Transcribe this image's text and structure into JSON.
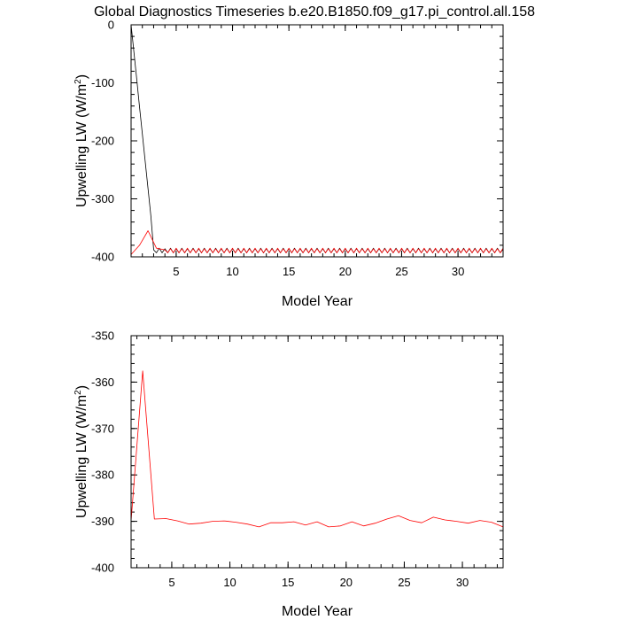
{
  "figure": {
    "title": "Global Diagnostics Timeseries b.e20.B1850.f09_g17.pi_control.all.158"
  },
  "chart_data": [
    {
      "type": "line",
      "xlabel": "Model Year",
      "ylabel": "Upwelling LW (W/m",
      "ylabel_sup": "2",
      "ylabel_end": ")",
      "xlim": [
        1,
        34
      ],
      "ylim": [
        -400,
        0
      ],
      "xticks": [
        5,
        10,
        15,
        20,
        25,
        30
      ],
      "yticks": [
        -400,
        -300,
        -200,
        -100,
        0
      ],
      "xminor_step": 1,
      "yminor_step": 20,
      "series": [
        {
          "color": "#000000",
          "x": [
            1.0,
            1.25,
            1.5,
            1.75,
            2.0,
            2.25,
            2.5,
            2.75,
            3.0,
            3.25,
            3.5,
            3.75,
            4.0,
            4.25,
            4.5,
            4.75,
            5.0,
            5.25,
            5.5,
            5.75,
            6.0,
            6.25,
            6.5,
            6.75,
            7.0,
            7.25,
            7.5,
            7.75,
            8.0,
            8.25,
            8.5,
            8.75,
            9.0,
            9.25,
            9.5,
            9.75,
            10.0,
            10.25,
            10.5,
            10.75,
            11.0,
            11.25,
            11.5,
            11.75,
            12.0,
            12.25,
            12.5,
            12.75,
            13.0,
            13.25,
            13.5,
            13.75,
            14.0,
            14.25,
            14.5,
            14.75,
            15.0,
            15.25,
            15.5,
            15.75,
            16.0,
            16.25,
            16.5,
            16.75,
            17.0,
            17.25,
            17.5,
            17.75,
            18.0,
            18.25,
            18.5,
            18.75,
            19.0,
            19.25,
            19.5,
            19.75,
            20.0,
            20.25,
            20.5,
            20.75,
            21.0,
            21.25,
            21.5,
            21.75,
            22.0,
            22.25,
            22.5,
            22.75,
            23.0,
            23.25,
            23.5,
            23.75,
            24.0,
            24.25,
            24.5,
            24.75,
            25.0,
            25.25,
            25.5,
            25.75,
            26.0,
            26.25,
            26.5,
            26.75,
            27.0,
            27.25,
            27.5,
            27.75,
            28.0,
            28.25,
            28.5,
            28.75,
            29.0,
            29.25,
            29.5,
            29.75,
            30.0,
            30.25,
            30.5,
            30.75,
            31.0,
            31.25,
            31.5,
            31.75,
            32.0,
            32.25,
            32.5,
            32.75,
            33.0,
            33.25,
            33.5,
            33.75,
            34.0
          ],
          "y": [
            0,
            -47,
            -94,
            -141,
            -188,
            -235,
            -282,
            -329,
            -388,
            -393,
            -385,
            -393,
            -386,
            -393,
            -385,
            -393,
            -386,
            -393,
            -385,
            -393,
            -386,
            -393,
            -385,
            -393,
            -386,
            -393,
            -385,
            -393,
            -386,
            -393,
            -385,
            -393,
            -386,
            -393,
            -385,
            -393,
            -386,
            -393,
            -385,
            -393,
            -386,
            -393,
            -385,
            -393,
            -386,
            -393,
            -385,
            -393,
            -386,
            -393,
            -385,
            -393,
            -386,
            -393,
            -385,
            -393,
            -386,
            -393,
            -385,
            -393,
            -386,
            -393,
            -385,
            -393,
            -386,
            -393,
            -385,
            -393,
            -386,
            -393,
            -385,
            -393,
            -386,
            -393,
            -385,
            -393,
            -386,
            -393,
            -385,
            -393,
            -386,
            -393,
            -385,
            -393,
            -386,
            -393,
            -385,
            -393,
            -386,
            -393,
            -385,
            -393,
            -386,
            -393,
            -385,
            -393,
            -386,
            -393,
            -385,
            -393,
            -386,
            -393,
            -385,
            -393,
            -386,
            -393,
            -385,
            -393,
            -386,
            -393,
            -385,
            -393,
            -386,
            -393,
            -385,
            -393,
            -386,
            -393,
            -385,
            -393,
            -386,
            -393,
            -385,
            -393,
            -386,
            -393,
            -385,
            -393,
            -386,
            -393,
            -385,
            -393,
            -387
          ]
        },
        {
          "color": "#ff0000",
          "x": [
            1.0,
            1.75,
            2.5,
            3.25,
            4.0,
            4.25,
            4.5,
            4.75,
            5.0,
            5.25,
            5.5,
            5.75,
            6.0,
            6.25,
            6.5,
            6.75,
            7.0,
            7.25,
            7.5,
            7.75,
            8.0,
            8.25,
            8.5,
            8.75,
            9.0,
            9.25,
            9.5,
            9.75,
            10.0,
            10.25,
            10.5,
            10.75,
            11.0,
            11.25,
            11.5,
            11.75,
            12.0,
            12.25,
            12.5,
            12.75,
            13.0,
            13.25,
            13.5,
            13.75,
            14.0,
            14.25,
            14.5,
            14.75,
            15.0,
            15.25,
            15.5,
            15.75,
            16.0,
            16.25,
            16.5,
            16.75,
            17.0,
            17.25,
            17.5,
            17.75,
            18.0,
            18.25,
            18.5,
            18.75,
            19.0,
            19.25,
            19.5,
            19.75,
            20.0,
            20.25,
            20.5,
            20.75,
            21.0,
            21.25,
            21.5,
            21.75,
            22.0,
            22.25,
            22.5,
            22.75,
            23.0,
            23.25,
            23.5,
            23.75,
            24.0,
            24.25,
            24.5,
            24.75,
            25.0,
            25.25,
            25.5,
            25.75,
            26.0,
            26.25,
            26.5,
            26.75,
            27.0,
            27.25,
            27.5,
            27.75,
            28.0,
            28.25,
            28.5,
            28.75,
            29.0,
            29.25,
            29.5,
            29.75,
            30.0,
            30.25,
            30.5,
            30.75,
            31.0,
            31.25,
            31.5,
            31.75,
            32.0,
            32.25,
            32.5,
            32.75,
            33.0,
            33.25,
            33.5,
            33.75,
            34.0
          ],
          "y": [
            -396,
            -380,
            -355,
            -385,
            -388,
            -393,
            -386,
            -393,
            -385,
            -393,
            -386,
            -393,
            -385,
            -393,
            -386,
            -393,
            -385,
            -393,
            -386,
            -393,
            -385,
            -393,
            -386,
            -393,
            -385,
            -393,
            -386,
            -393,
            -385,
            -393,
            -386,
            -393,
            -385,
            -393,
            -386,
            -393,
            -385,
            -393,
            -386,
            -393,
            -385,
            -393,
            -386,
            -393,
            -385,
            -393,
            -386,
            -393,
            -385,
            -393,
            -386,
            -393,
            -385,
            -393,
            -386,
            -393,
            -385,
            -393,
            -386,
            -393,
            -385,
            -393,
            -386,
            -393,
            -385,
            -393,
            -386,
            -393,
            -385,
            -393,
            -386,
            -393,
            -385,
            -393,
            -386,
            -393,
            -385,
            -393,
            -386,
            -393,
            -385,
            -393,
            -386,
            -393,
            -385,
            -393,
            -386,
            -393,
            -385,
            -393,
            -386,
            -393,
            -385,
            -393,
            -386,
            -393,
            -385,
            -393,
            -386,
            -393,
            -385,
            -393,
            -386,
            -393,
            -385,
            -393,
            -386,
            -393,
            -385,
            -393,
            -386,
            -393,
            -385,
            -393,
            -386,
            -393,
            -385,
            -393,
            -386,
            -393,
            -385,
            -393,
            -386,
            -393,
            -385
          ]
        }
      ]
    },
    {
      "type": "line",
      "xlabel": "Model Year",
      "ylabel": "Upwelling LW (W/m",
      "ylabel_sup": "2",
      "ylabel_end": ")",
      "xlim": [
        1.5,
        33.5
      ],
      "ylim": [
        -400,
        -350
      ],
      "xticks": [
        5,
        10,
        15,
        20,
        25,
        30
      ],
      "yticks": [
        -400,
        -390,
        -380,
        -370,
        -360,
        -350
      ],
      "xminor_step": 1,
      "yminor_step": 2,
      "series": [
        {
          "color": "#ff0000",
          "x": [
            1.5,
            2.5,
            3.5,
            4.5,
            5.5,
            6.5,
            7.5,
            8.5,
            9.5,
            10.5,
            11.5,
            12.5,
            13.5,
            14.5,
            15.5,
            16.5,
            17.5,
            18.5,
            19.5,
            20.5,
            21.5,
            22.5,
            23.5,
            24.5,
            25.5,
            26.5,
            27.5,
            28.5,
            29.5,
            30.5,
            31.5,
            32.5,
            33.5
          ],
          "y": [
            -389.9,
            -357.6,
            -389.5,
            -389.4,
            -389.9,
            -390.6,
            -390.4,
            -390.0,
            -389.9,
            -390.2,
            -390.6,
            -391.2,
            -390.3,
            -390.3,
            -390.1,
            -390.8,
            -390.1,
            -391.2,
            -391.0,
            -390.1,
            -391.0,
            -390.4,
            -389.5,
            -388.8,
            -389.8,
            -390.3,
            -389.1,
            -389.7,
            -390.0,
            -390.4,
            -389.8,
            -390.2,
            -391.2
          ]
        }
      ]
    }
  ]
}
